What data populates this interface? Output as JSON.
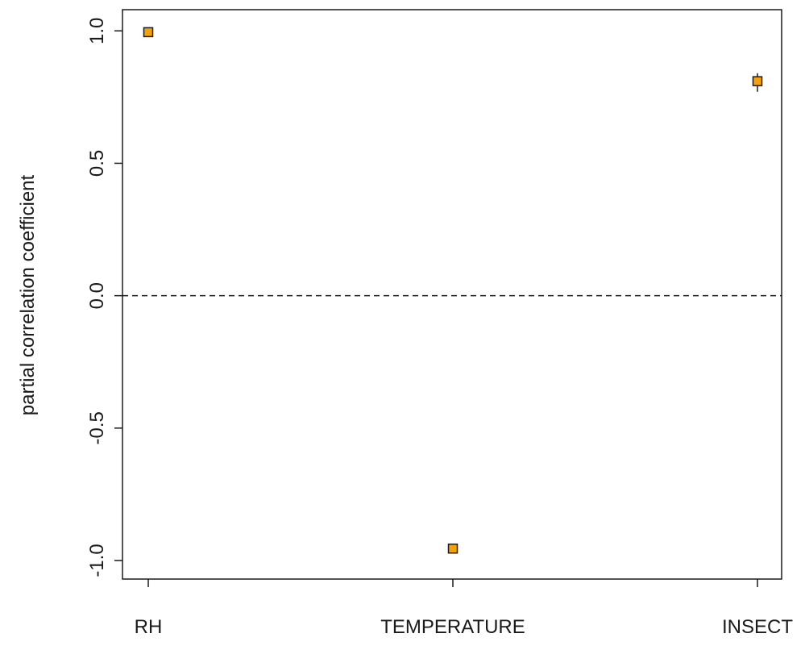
{
  "chart_data": {
    "type": "scatter",
    "title": "",
    "xlabel": "",
    "ylabel": "partial correlation coefficient",
    "categories": [
      "RH",
      "TEMPERATURE",
      "INSECT"
    ],
    "series": [
      {
        "values": [
          0.995,
          -0.955,
          0.81
        ],
        "lower": [
          0.99,
          -0.96,
          0.77
        ],
        "upper": [
          1.0,
          -0.95,
          0.84
        ]
      }
    ],
    "ylim": [
      -1.07,
      1.08
    ],
    "yticks": [
      -1.0,
      -0.5,
      0.0,
      0.5,
      1.0
    ],
    "ytick_labels": [
      "-1.0",
      "-0.5",
      "0.0",
      "0.5",
      "1.0"
    ],
    "reference_line": {
      "y": 0.0,
      "style": "dashed"
    },
    "grid": false,
    "legend": "none",
    "marker": "square",
    "colors": {
      "marker_fill": "#f5a10a",
      "marker_stroke": "#1a1a1a",
      "axis": "#1a1a1a"
    }
  }
}
